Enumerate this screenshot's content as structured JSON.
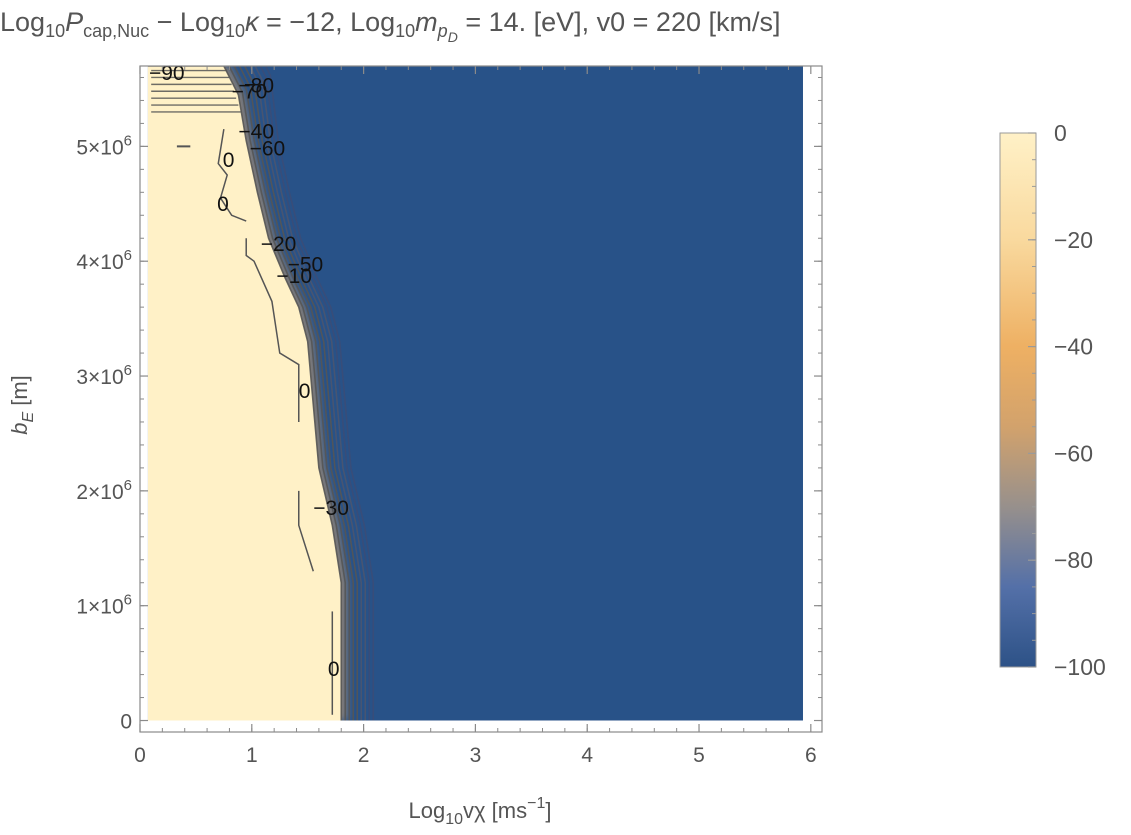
{
  "chart_data": {
    "type": "heatmap",
    "title": {
      "p1": "Log",
      "p1sub": "10",
      "p2": "P",
      "p2sub": "cap,Nuc",
      "p3": " − Log",
      "p3sub": "10",
      "p4": "κ",
      "p5": " = −12, Log",
      "p5sub": "10",
      "p6": "m",
      "p6sub": "p",
      "p6subsub": "D",
      "p7": " = 14. [eV], v0 = 220 [km/s]"
    },
    "xlabel": {
      "pre": "Log",
      "sub": "10",
      "var": "vχ",
      "unit": " [ms",
      "sup": "−1",
      "close": "]"
    },
    "ylabel": {
      "var": "b",
      "sub": "E",
      "unit": " [m]"
    },
    "xlim": [
      0,
      6.1
    ],
    "ylim": [
      -0.1,
      5.7
    ],
    "x_ticks": [
      {
        "value": 0,
        "label": "0"
      },
      {
        "value": 1,
        "label": "1"
      },
      {
        "value": 2,
        "label": "2"
      },
      {
        "value": 3,
        "label": "3"
      },
      {
        "value": 4,
        "label": "4"
      },
      {
        "value": 5,
        "label": "5"
      },
      {
        "value": 6,
        "label": "6"
      }
    ],
    "y_ticks": [
      {
        "value": 0,
        "label": "0",
        "sup": ""
      },
      {
        "value": 1,
        "label": "1×10",
        "sup": "6"
      },
      {
        "value": 2,
        "label": "2×10",
        "sup": "6"
      },
      {
        "value": 3,
        "label": "3×10",
        "sup": "6"
      },
      {
        "value": 4,
        "label": "4×10",
        "sup": "6"
      },
      {
        "value": 5,
        "label": "5×10",
        "sup": "6"
      }
    ],
    "y_scale_note": "y values in units of 10^6 m",
    "data_extent": {
      "x": [
        0.07,
        5.93
      ],
      "y": [
        0,
        5.7
      ]
    },
    "high_region_boundary": [
      [
        0.07,
        5.7
      ],
      [
        0.75,
        5.7
      ],
      [
        0.88,
        5.45
      ],
      [
        0.95,
        5.05
      ],
      [
        1.05,
        4.6
      ],
      [
        1.15,
        4.2
      ],
      [
        1.3,
        3.85
      ],
      [
        1.42,
        3.6
      ],
      [
        1.5,
        3.3
      ],
      [
        1.55,
        2.75
      ],
      [
        1.6,
        2.2
      ],
      [
        1.72,
        1.7
      ],
      [
        1.8,
        1.2
      ],
      [
        1.8,
        0
      ]
    ],
    "values": {
      "inside_boundary": 0,
      "outside_boundary": -100
    },
    "contour_levels": [
      0,
      -10,
      -20,
      -30,
      -40,
      -50,
      -60,
      -70,
      -80,
      -90
    ],
    "contour_labels": [
      {
        "text": "−90",
        "x": 0.08,
        "y": 5.64
      },
      {
        "text": "−80",
        "x": 0.88,
        "y": 5.53
      },
      {
        "text": "−70",
        "x": 0.82,
        "y": 5.48
      },
      {
        "text": "−40",
        "x": 0.88,
        "y": 5.13
      },
      {
        "text": "−60",
        "x": 0.98,
        "y": 4.98
      },
      {
        "text": "0",
        "x": 0.74,
        "y": 4.88
      },
      {
        "text": "0",
        "x": 0.69,
        "y": 4.5
      },
      {
        "text": "−20",
        "x": 1.08,
        "y": 4.15
      },
      {
        "text": "−50",
        "x": 1.32,
        "y": 3.97
      },
      {
        "text": "−10",
        "x": 1.22,
        "y": 3.87
      },
      {
        "text": "0",
        "x": 1.42,
        "y": 2.87
      },
      {
        "text": "−30",
        "x": 1.55,
        "y": 1.85
      },
      {
        "text": "0",
        "x": 1.68,
        "y": 0.45
      }
    ],
    "colorbar": {
      "range": [
        -100,
        0
      ],
      "ticks": [
        {
          "value": 0,
          "label": "0"
        },
        {
          "value": -20,
          "label": "−20"
        },
        {
          "value": -40,
          "label": "−40"
        },
        {
          "value": -60,
          "label": "−60"
        },
        {
          "value": -80,
          "label": "−80"
        },
        {
          "value": -100,
          "label": "−100"
        }
      ],
      "stops": [
        {
          "value": 0,
          "color": "#fff1c7"
        },
        {
          "value": -20,
          "color": "#f9d99e"
        },
        {
          "value": -40,
          "color": "#eeb063"
        },
        {
          "value": -55,
          "color": "#d2a26c"
        },
        {
          "value": -70,
          "color": "#97908c"
        },
        {
          "value": -85,
          "color": "#5470a8"
        },
        {
          "value": -100,
          "color": "#2d5287"
        }
      ]
    },
    "colors": {
      "high": "#fff1c7",
      "low": "#285288",
      "contour_line": "#555555",
      "frame": "#8a8a8a",
      "text": "#555555"
    },
    "grid": false,
    "legend_placement": "right (colorbar)"
  }
}
